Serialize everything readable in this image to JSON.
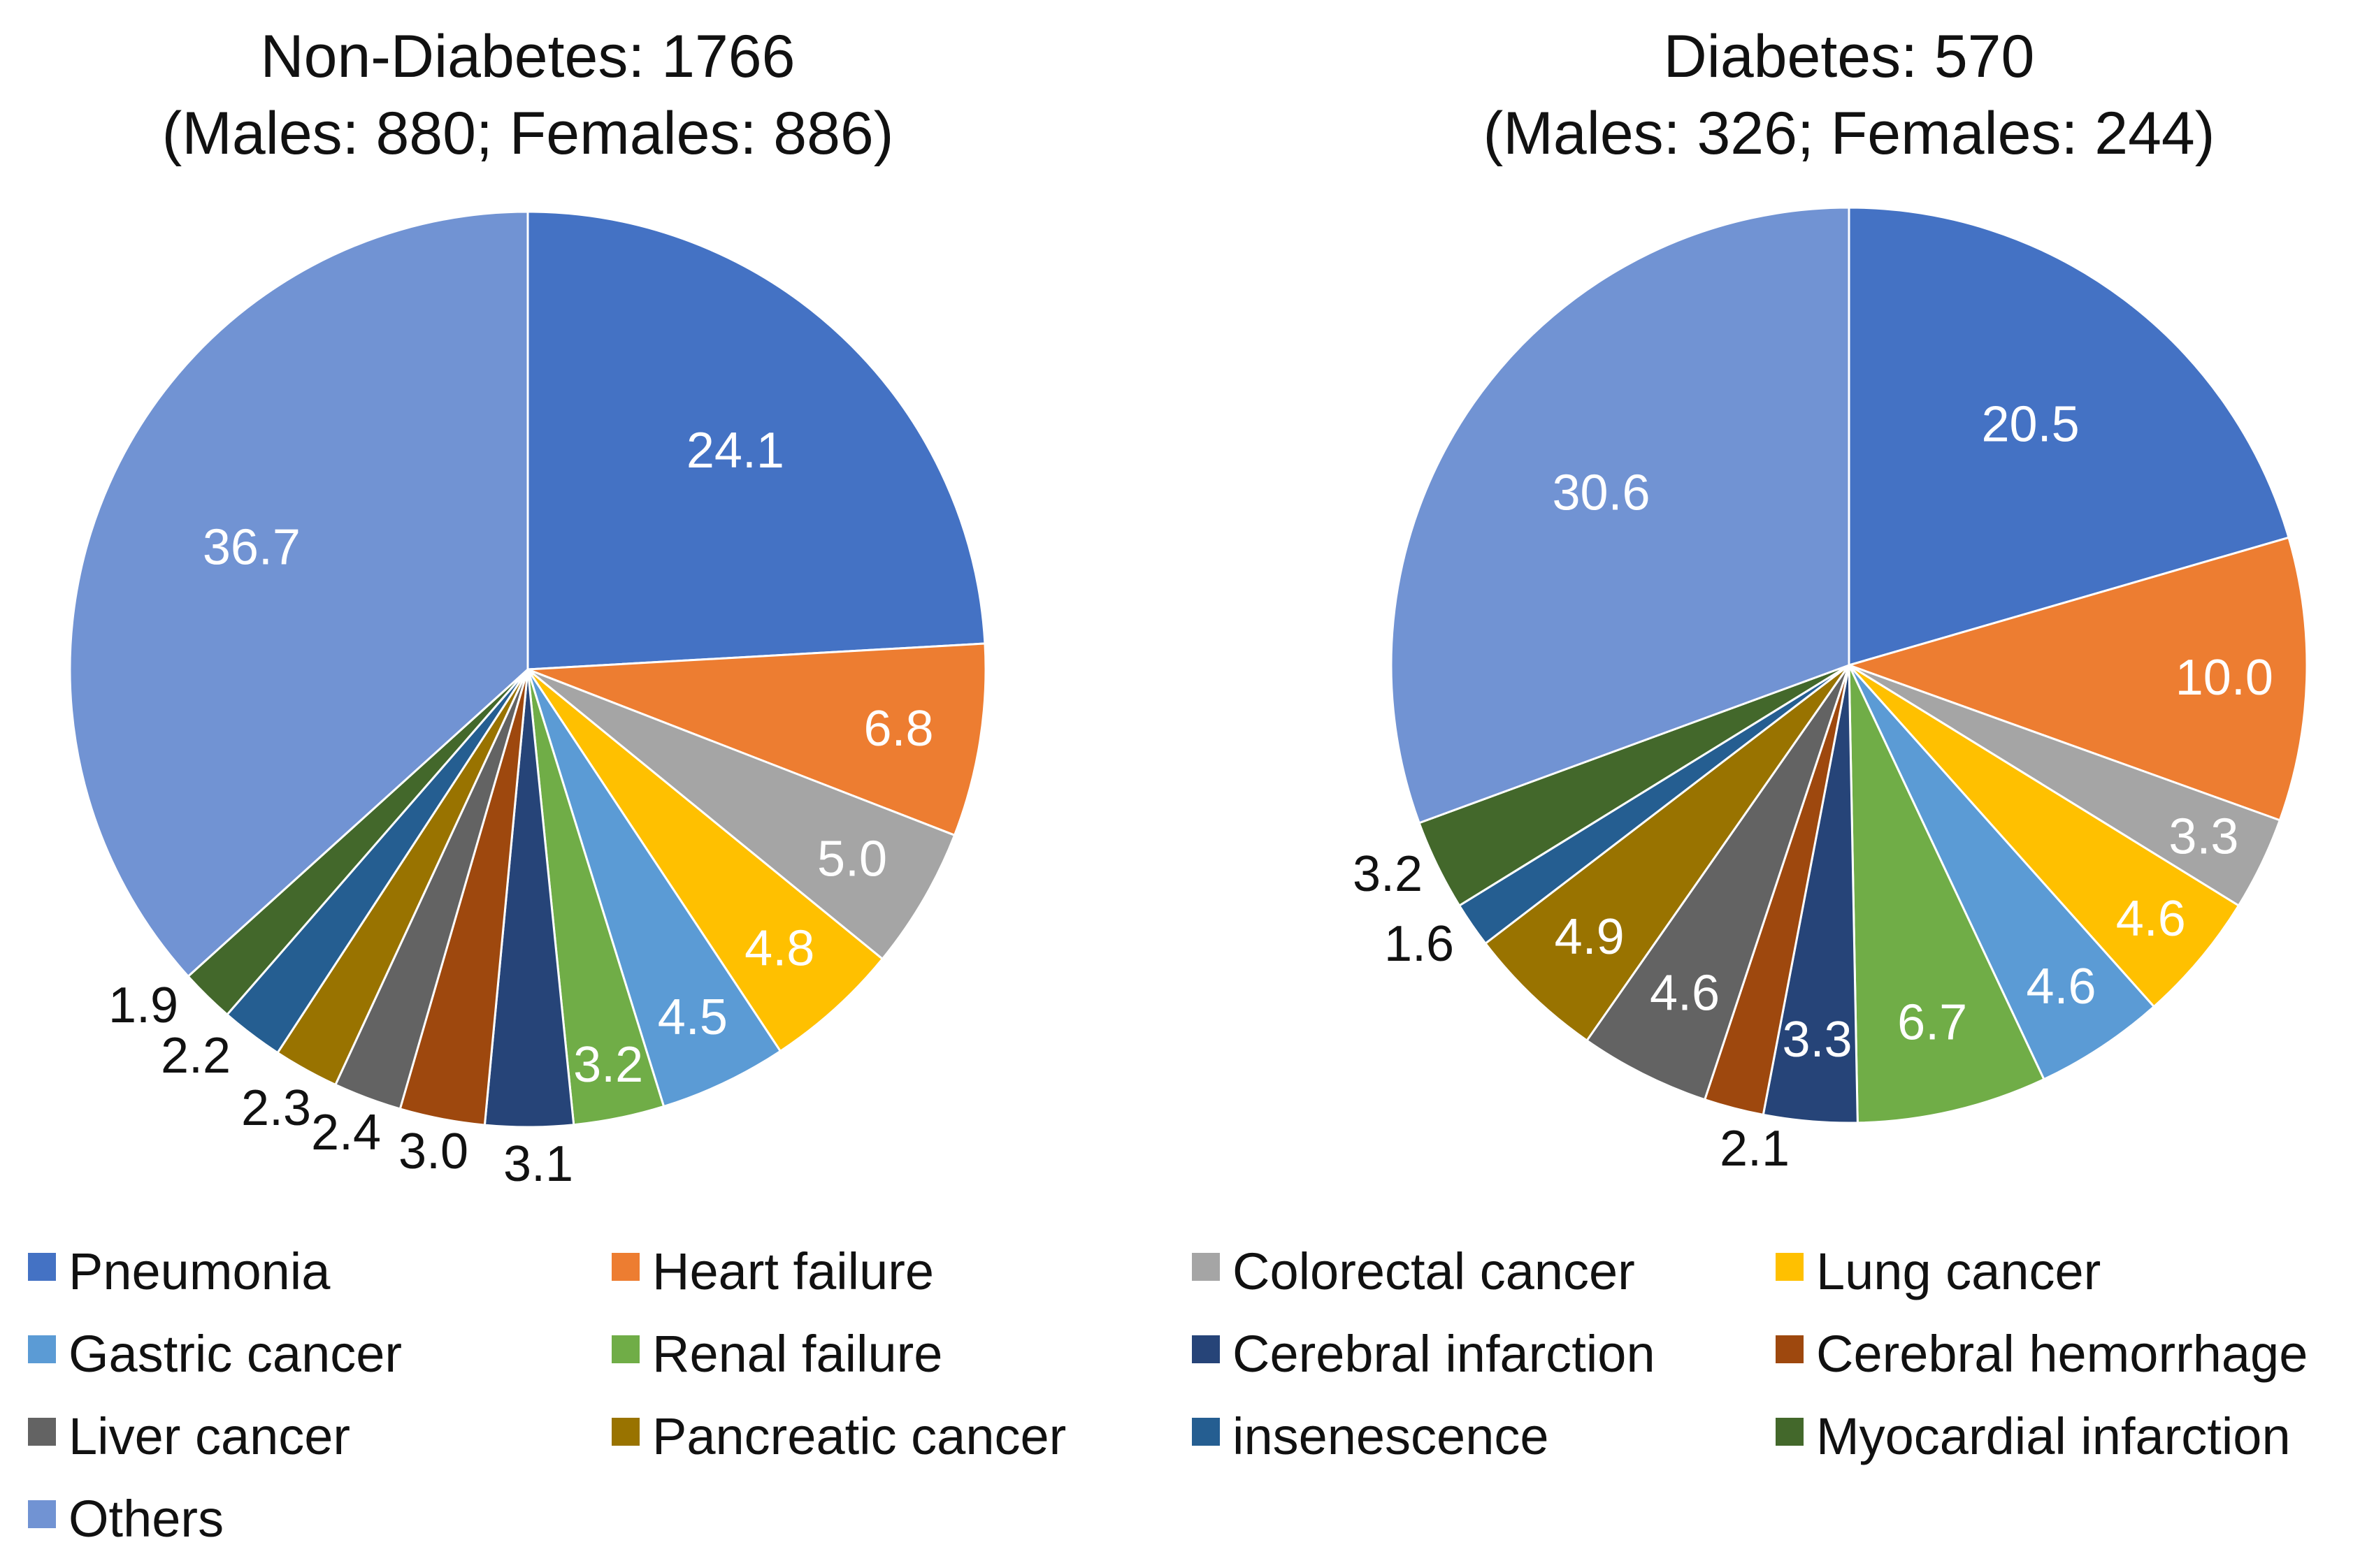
{
  "legend": [
    {
      "key": "pneumonia",
      "label": "Pneumonia",
      "color": "#4472C4"
    },
    {
      "key": "heart_failure",
      "label": "Heart failure",
      "color": "#ED7D31"
    },
    {
      "key": "colorectal_cancer",
      "label": "Colorectal cancer",
      "color": "#A5A5A5"
    },
    {
      "key": "lung_cancer",
      "label": "Lung cancer",
      "color": "#FFC000"
    },
    {
      "key": "gastric_cancer",
      "label": "Gastric cancer",
      "color": "#5B9BD5"
    },
    {
      "key": "renal_failure",
      "label": "Renal failure",
      "color": "#70AD47"
    },
    {
      "key": "cerebral_infarction",
      "label": "Cerebral infarction",
      "color": "#264478"
    },
    {
      "key": "cerebral_hemorrhage",
      "label": "Cerebral hemorrhage",
      "color": "#9E480E"
    },
    {
      "key": "liver_cancer",
      "label": "Liver cancer",
      "color": "#636363"
    },
    {
      "key": "pancreatic_cancer",
      "label": "Pancreatic cancer",
      "color": "#997300"
    },
    {
      "key": "insenescence",
      "label": "insenescence",
      "color": "#255E91"
    },
    {
      "key": "myocardial_infarction",
      "label": "Myocardial infarction",
      "color": "#43682B"
    },
    {
      "key": "others",
      "label": "Others",
      "color": "#7193D3"
    }
  ],
  "chart_data": [
    {
      "type": "pie",
      "id": "non-diabetes",
      "title": "Non-Diabetes: 1766",
      "subtitle": "(Males: 880; Females: 886)",
      "categories": [
        "Pneumonia",
        "Heart failure",
        "Colorectal cancer",
        "Lung cancer",
        "Gastric cancer",
        "Renal failure",
        "Cerebral infarction",
        "Cerebral hemorrhage",
        "Liver cancer",
        "Pancreatic cancer",
        "insenescence",
        "Myocardial infarction",
        "Others"
      ],
      "values": [
        24.1,
        6.8,
        5.0,
        4.8,
        4.5,
        3.2,
        3.1,
        3.0,
        2.4,
        2.3,
        2.2,
        1.9,
        36.7
      ],
      "labels": [
        "24.1",
        "6.8",
        "5.0",
        "4.8",
        "4.5",
        "3.2",
        "3.1",
        "3.0",
        "2.4",
        "2.3",
        "2.2",
        "1.9",
        "36.7"
      ]
    },
    {
      "type": "pie",
      "id": "diabetes",
      "title": "Diabetes: 570",
      "subtitle": "(Males: 326; Females: 244)",
      "categories": [
        "Pneumonia",
        "Heart failure",
        "Colorectal cancer",
        "Lung cancer",
        "Gastric cancer",
        "Renal failure",
        "Cerebral infarction",
        "Cerebral hemorrhage",
        "Liver cancer",
        "Pancreatic cancer",
        "insenescence",
        "Myocardial infarction",
        "Others"
      ],
      "values": [
        20.5,
        10.0,
        3.3,
        4.6,
        4.6,
        6.7,
        3.3,
        2.1,
        4.6,
        4.9,
        1.6,
        3.2,
        30.6
      ],
      "labels": [
        "20.5",
        "10.0",
        "3.3",
        "4.6",
        "4.6",
        "6.7",
        "3.3",
        "2.1",
        "4.6",
        "4.9",
        "1.6",
        "3.2",
        "30.6"
      ]
    }
  ]
}
